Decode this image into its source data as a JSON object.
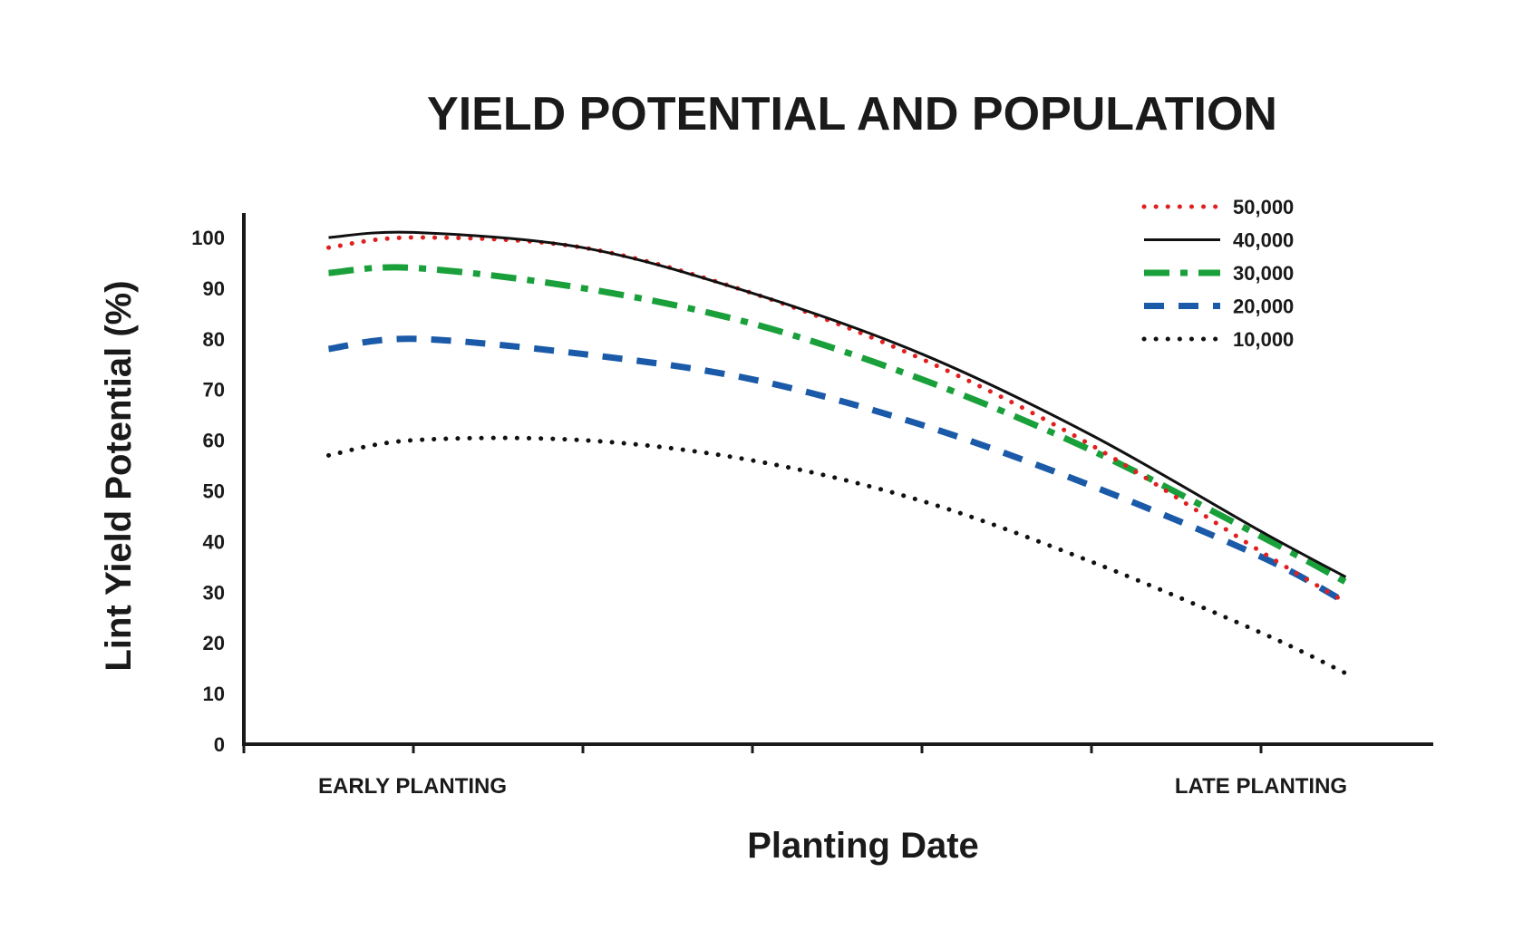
{
  "chart_data": {
    "type": "line",
    "title": "YIELD POTENTIAL AND POPULATION",
    "xlabel": "Planting Date",
    "ylabel": "Lint Yield Potential (%)",
    "x_category_labels": [
      "EARLY PLANTING",
      "LATE PLANTING"
    ],
    "ylim": [
      0,
      100
    ],
    "yticks": [
      "100",
      "90",
      "80",
      "70",
      "60",
      "50",
      "40",
      "30",
      "20",
      "10",
      "0"
    ],
    "x_tick_count": 7,
    "grid": false,
    "legend_position": "top-right",
    "x": [
      0.5,
      1,
      2,
      3,
      4,
      5,
      6,
      6.5
    ],
    "series": [
      {
        "name": "50,000",
        "color": "#e02020",
        "style": "dotted",
        "values": [
          98,
          100,
          98,
          89,
          76,
          59,
          38,
          28
        ]
      },
      {
        "name": "40,000",
        "color": "#111111",
        "style": "solid",
        "values": [
          100,
          101,
          98,
          89,
          77,
          61,
          42,
          33
        ]
      },
      {
        "name": "30,000",
        "color": "#1aa03a",
        "style": "dashdot",
        "values": [
          93,
          94,
          90,
          83,
          72,
          58,
          41,
          32
        ]
      },
      {
        "name": "20,000",
        "color": "#1a5aa8",
        "style": "dashed",
        "values": [
          78,
          80,
          77,
          72,
          63,
          51,
          37,
          28
        ]
      },
      {
        "name": "10,000",
        "color": "#111111",
        "style": "dotted",
        "values": [
          57,
          60,
          60,
          56,
          48,
          36,
          22,
          14
        ]
      }
    ]
  }
}
